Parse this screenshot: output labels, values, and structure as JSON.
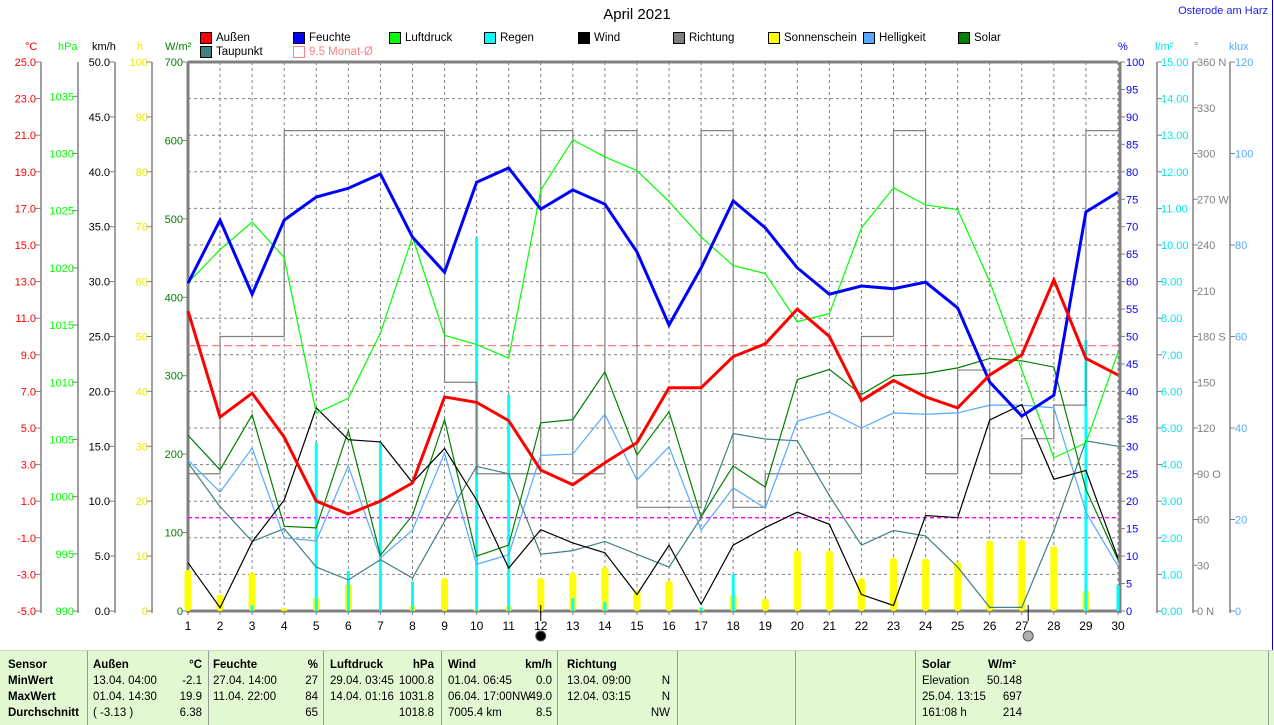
{
  "title": "April 2021",
  "location": "Osterode am Harz",
  "legend": [
    {
      "label": "Außen",
      "color": "#ff0000"
    },
    {
      "label": "Feuchte",
      "color": "#0000ff"
    },
    {
      "label": "Luftdruck",
      "color": "#00ff00"
    },
    {
      "label": "Regen",
      "color": "#00ffff"
    },
    {
      "label": "Wind",
      "color": "#000000"
    },
    {
      "label": "Richtung",
      "color": "#808080"
    },
    {
      "label": "Sonnenschein",
      "color": "#ffff00"
    },
    {
      "label": "Helligkeit",
      "color": "#55aaff"
    },
    {
      "label": "Solar",
      "color": "#008000"
    },
    {
      "label": "Taupunkt",
      "color": "#408080"
    },
    {
      "label": "9.5 Monat-Ø",
      "color": "#ff8080"
    }
  ],
  "chart_data": {
    "type": "line",
    "title": "April 2021",
    "x": [
      1,
      2,
      3,
      4,
      5,
      6,
      7,
      8,
      9,
      10,
      11,
      12,
      13,
      14,
      15,
      16,
      17,
      18,
      19,
      20,
      21,
      22,
      23,
      24,
      25,
      26,
      27,
      28,
      29,
      30
    ],
    "grid": true,
    "axes": {
      "left": [
        {
          "unit": "°C",
          "color": "#ff0000",
          "range": [
            -5,
            25
          ],
          "ticks": [
            "25.0",
            "23.0",
            "21.0",
            "19.0",
            "17.0",
            "15.0",
            "13.0",
            "11.0",
            "9.0",
            "7.0",
            "5.0",
            "3.0",
            "1.0",
            "-1.0",
            "-3.0",
            "-5.0"
          ]
        },
        {
          "unit": "hPa",
          "color": "#00ff00",
          "range": [
            990,
            1038
          ],
          "ticks": [
            "1035",
            "1030",
            "1025",
            "1020",
            "1015",
            "1010",
            "1005",
            "1000",
            "995",
            "990"
          ]
        },
        {
          "unit": "km/h",
          "color": "#000000",
          "range": [
            0,
            50
          ],
          "ticks": [
            "50.0",
            "45.0",
            "40.0",
            "35.0",
            "30.0",
            "25.0",
            "20.0",
            "15.0",
            "10.0",
            "5.0",
            "0.0"
          ]
        },
        {
          "unit": "h",
          "color": "#e8e800",
          "range": [
            0,
            100
          ],
          "ticks": [
            "100",
            "90",
            "80",
            "70",
            "60",
            "50",
            "40",
            "30",
            "20",
            "10",
            "0"
          ]
        },
        {
          "unit": "W/m²",
          "color": "#008000",
          "range": [
            0,
            700
          ],
          "ticks": [
            "700",
            "600",
            "500",
            "400",
            "300",
            "200",
            "100",
            "0"
          ]
        }
      ],
      "right": [
        {
          "unit": "%",
          "color": "#0000ff",
          "range": [
            0,
            100
          ],
          "ticks": [
            "100",
            "95",
            "90",
            "85",
            "80",
            "75",
            "70",
            "65",
            "60",
            "55",
            "50",
            "45",
            "40",
            "35",
            "30",
            "25",
            "20",
            "15",
            "10",
            "5",
            "0"
          ]
        },
        {
          "unit": "l/m²",
          "color": "#00e8e8",
          "range": [
            0,
            15
          ],
          "ticks": [
            "15.00",
            "14.00",
            "13.00",
            "12.00",
            "11.00",
            "10.00",
            "9.00",
            "8.00",
            "7.00",
            "6.00",
            "5.00",
            "4.00",
            "3.00",
            "2.00",
            "1.00",
            "0.00"
          ]
        },
        {
          "unit": "°",
          "color": "#808080",
          "range": [
            0,
            360
          ],
          "ticks": [
            "360 N",
            "330",
            "300",
            "270 W",
            "240",
            "210",
            "180 S",
            "150",
            "120",
            "90 O",
            "60",
            "30",
            "0 N"
          ]
        },
        {
          "unit": "klux",
          "color": "#55aaff",
          "range": [
            0,
            120
          ],
          "ticks": [
            "120",
            "100",
            "80",
            "60",
            "40",
            "20",
            "0"
          ]
        }
      ]
    },
    "series": [
      {
        "name": "Sonnenschein",
        "kind": "bar",
        "axis": "h",
        "color": "#ffff00",
        "values": [
          7.5,
          3,
          7,
          0.5,
          2.5,
          5,
          0,
          1,
          6,
          0.3,
          1,
          6,
          7,
          8,
          3.8,
          5.5,
          0.5,
          3,
          2.2,
          11,
          11,
          6,
          9.7,
          9.5,
          9,
          12.8,
          13,
          11.8,
          3.8,
          0
        ]
      },
      {
        "name": "Regen",
        "kind": "bar",
        "axis": "l/m²",
        "color": "#00ffff",
        "values": [
          0,
          0,
          0.15,
          0,
          4.6,
          1.1,
          4.6,
          0.8,
          0,
          10.2,
          5.9,
          0,
          0.35,
          0.25,
          0,
          0,
          0.1,
          1.0,
          0,
          0,
          0,
          0,
          0,
          0,
          0,
          0,
          0,
          0,
          7.4,
          0.7
        ]
      },
      {
        "name": "Richtung",
        "kind": "step",
        "axis": "°",
        "color": "#808080",
        "values": [
          90,
          180,
          180,
          315,
          315,
          315,
          315,
          315,
          150,
          90,
          90,
          315,
          90,
          315,
          68,
          68,
          315,
          68,
          90,
          90,
          90,
          180,
          315,
          90,
          158,
          90,
          113,
          135,
          315,
          315
        ]
      },
      {
        "name": "Taupunkt",
        "kind": "line",
        "axis": "°C",
        "color": "#408080",
        "values": [
          3.1,
          0.7,
          -1.2,
          -0.5,
          -2.6,
          -3.3,
          -2.2,
          -3.2,
          -0.1,
          2.9,
          2.5,
          -1.9,
          -1.7,
          -1.2,
          -1.9,
          -2.6,
          0.1,
          4.7,
          4.4,
          4.3,
          1.3,
          -1.4,
          -0.6,
          -0.9,
          -2.6,
          -4.8,
          -4.8,
          -0.6,
          4.3,
          4.0
        ]
      },
      {
        "name": "Helligkeit",
        "kind": "line",
        "axis": "klux",
        "color": "#55aaff",
        "values": [
          33,
          26,
          35.6,
          16,
          15.3,
          31.7,
          11.6,
          17.7,
          34.5,
          10.2,
          12.3,
          34,
          34.3,
          43,
          28.6,
          35.9,
          17.7,
          26.9,
          22.5,
          41.5,
          43.5,
          40,
          43.3,
          43,
          43.3,
          45,
          45,
          44.4,
          21.6,
          9.8
        ]
      },
      {
        "name": "Solar",
        "kind": "line",
        "axis": "W/m²",
        "color": "#008000",
        "values": [
          224,
          180,
          250,
          108,
          106,
          230,
          71,
          122,
          244,
          70,
          84,
          240,
          244,
          305,
          199,
          254,
          120,
          185,
          158,
          295,
          308,
          276,
          300,
          303,
          310,
          322,
          319,
          311,
          155,
          65
        ]
      },
      {
        "name": "Wind",
        "kind": "line",
        "axis": "km/h",
        "color": "#000000",
        "values": [
          4.4,
          0.3,
          6.3,
          10.1,
          18.5,
          15.6,
          15.4,
          11.7,
          14.8,
          10.1,
          3.9,
          7.4,
          6.2,
          5.3,
          1.5,
          6.0,
          0.6,
          6.0,
          7.6,
          9.0,
          7.9,
          1.5,
          0.5,
          8.7,
          8.5,
          17.4,
          18.8,
          12.0,
          12.8,
          4.8
        ]
      },
      {
        "name": "Luftdruck",
        "kind": "line",
        "axis": "hPa",
        "color": "#00ff00",
        "values": [
          1018.7,
          1021.6,
          1024.0,
          1020.9,
          1007.3,
          1008.6,
          1014.3,
          1022.7,
          1014.1,
          1013.3,
          1012.1,
          1026.8,
          1031.2,
          1029.7,
          1028.5,
          1025.8,
          1022.7,
          1020.2,
          1019.5,
          1015.3,
          1016.0,
          1023.5,
          1027.0,
          1025.5,
          1025.1,
          1018.8,
          1011.1,
          1003.4,
          1004.7,
          1012.6
        ]
      },
      {
        "name": "Feuchte",
        "kind": "line",
        "axis": "%",
        "color": "#0000ff",
        "values": [
          59.7,
          71.2,
          57.7,
          71.2,
          75.4,
          77.0,
          79.6,
          68.1,
          61.7,
          78.1,
          80.7,
          73.2,
          76.7,
          74.1,
          65.4,
          52.1,
          62.5,
          74.7,
          69.8,
          62.5,
          57.7,
          59.2,
          58.7,
          59.9,
          55.2,
          41.7,
          35.5,
          39.3,
          72.7,
          76.3
        ]
      },
      {
        "name": "Außen",
        "kind": "line",
        "axis": "°C",
        "color": "#ff0000",
        "values": [
          11.4,
          5.6,
          6.9,
          4.5,
          1.0,
          0.3,
          1.0,
          2.0,
          6.7,
          6.4,
          5.4,
          2.7,
          1.9,
          3.1,
          4.2,
          7.2,
          7.2,
          8.9,
          9.6,
          11.5,
          10.0,
          6.5,
          7.6,
          6.7,
          6.1,
          7.9,
          9.0,
          13.1,
          8.8,
          7.9
        ]
      }
    ],
    "reference_lines": [
      {
        "name": "Monat-Ø Außen",
        "axis": "°C",
        "value": 9.5,
        "color": "#ff8080"
      },
      {
        "name": "Wind Durchschnitt",
        "axis": "km/h",
        "value": 8.5,
        "color": "#ff00ff"
      }
    ],
    "markers": [
      {
        "day": 12.0,
        "name": "moon-phase-new",
        "color": "#000000"
      },
      {
        "day": 27.2,
        "name": "moon-phase-full",
        "color": "#b0b0b0"
      }
    ]
  },
  "table": {
    "headers": [
      "Sensor",
      "Außen",
      "°C",
      "Feuchte",
      "%",
      "Luftdruck",
      "hPa",
      "Wind",
      "km/h",
      "Richtung"
    ],
    "rows": [
      {
        "label": "MinWert",
        "aussen_time": "13.04.  04:00",
        "aussen_val": "-2.1",
        "feuchte_time": "27.04.  14:00",
        "feuchte_val": "27",
        "druck_time": "29.04.  03:45",
        "druck_val": "1000.8",
        "wind_time": "01.04.  06:45",
        "wind_val": "0.0",
        "richtung_time": "13.04.  09:00",
        "richtung_val": "N"
      },
      {
        "label": "MaxWert",
        "aussen_time": "01.04.  14:30",
        "aussen_val": "19.9",
        "feuchte_time": "11.04.  22:00",
        "feuchte_val": "84",
        "druck_time": "14.04.  01:16",
        "druck_val": "1031.8",
        "wind_time": "06.04.  17:00NW",
        "wind_val": "49.0",
        "richtung_time": "12.04.  03:15",
        "richtung_val": "N"
      },
      {
        "label": "Durchschnitt",
        "aussen_time": "( -3.13 )",
        "aussen_val": "6.38",
        "feuchte_time": "",
        "feuchte_val": "65",
        "druck_time": "",
        "druck_val": "1018.8",
        "wind_time": "7005.4 km",
        "wind_val": "8.5",
        "richtung_time": "",
        "richtung_val": "NW"
      }
    ],
    "solar": {
      "header": "Solar",
      "unit": "W/m²",
      "rows": [
        [
          "Elevation",
          "50.148"
        ],
        [
          "25.04.  13:15",
          "697"
        ],
        [
          "161:08 h",
          "214"
        ]
      ]
    }
  }
}
